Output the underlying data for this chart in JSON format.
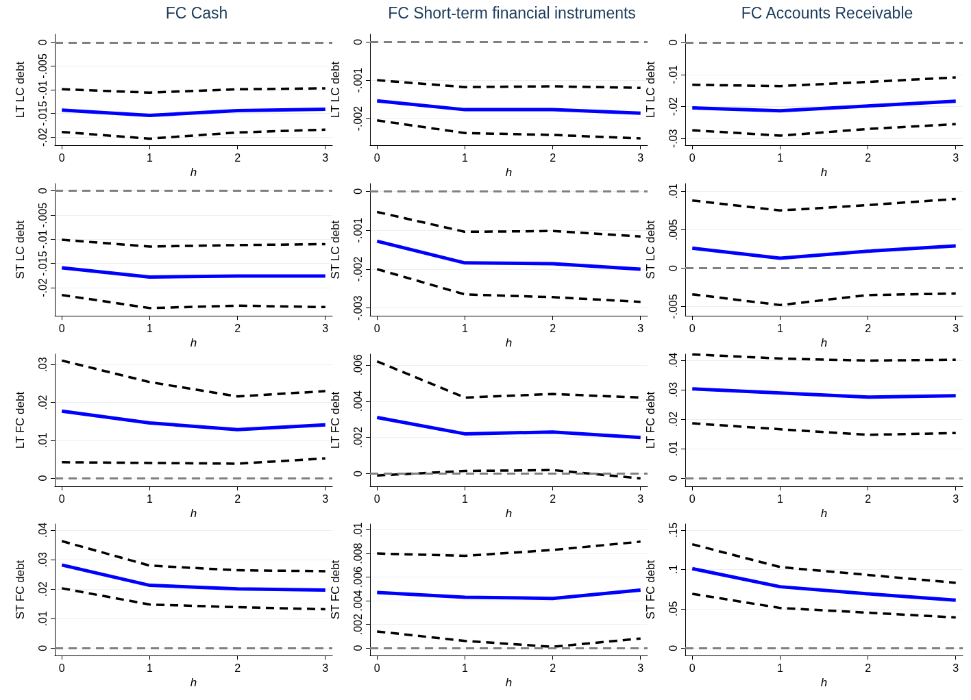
{
  "chart_data": [
    {
      "type": "line",
      "title": "FC Cash",
      "xlabel": "h",
      "ylabel": "LT LC debt",
      "x": [
        0,
        1,
        2,
        3
      ],
      "xlim": [
        -0.08,
        3.08
      ],
      "xticks": [
        0,
        1,
        2,
        3
      ],
      "ylim": [
        -0.0217,
        0.0017
      ],
      "yticks": [
        {
          "value": -0.02,
          "label": "-.02"
        },
        {
          "value": -0.015,
          "label": "-.015"
        },
        {
          "value": -0.01,
          "label": "-.01"
        },
        {
          "value": -0.005,
          "label": "-.005"
        },
        {
          "value": 0,
          "label": "0"
        }
      ],
      "grid": "y",
      "ref_lines": [
        {
          "axis": "y",
          "value": 0,
          "color": "#808080",
          "line_style": "dashed"
        }
      ],
      "series": [
        {
          "color": "#000000",
          "line_style": "dashed",
          "values": [
            -0.0099,
            -0.0106,
            -0.0099,
            -0.0097
          ]
        },
        {
          "color": "#0000ff",
          "line_style": "solid",
          "values": [
            -0.0143,
            -0.0154,
            -0.0144,
            -0.0141
          ]
        },
        {
          "color": "#000000",
          "line_style": "dashed",
          "values": [
            -0.0189,
            -0.0203,
            -0.019,
            -0.0184
          ]
        }
      ]
    },
    {
      "type": "line",
      "title": "FC Short-term financial instruments",
      "xlabel": "h",
      "ylabel": "LT LC debt",
      "x": [
        0,
        1,
        2,
        3
      ],
      "xlim": [
        -0.08,
        3.08
      ],
      "xticks": [
        0,
        1,
        2,
        3
      ],
      "ylim": [
        -0.0027,
        0.0002
      ],
      "yticks": [
        {
          "value": -0.002,
          "label": "-.002"
        },
        {
          "value": -0.001,
          "label": "-.001"
        },
        {
          "value": 0,
          "label": "0"
        }
      ],
      "grid": "y",
      "ref_lines": [
        {
          "axis": "y",
          "value": 0,
          "color": "#808080",
          "line_style": "dashed"
        }
      ],
      "series": [
        {
          "color": "#000000",
          "line_style": "dashed",
          "values": [
            -0.001,
            -0.00118,
            -0.00116,
            -0.0012
          ]
        },
        {
          "color": "#0000ff",
          "line_style": "solid",
          "values": [
            -0.00154,
            -0.00177,
            -0.00177,
            -0.00186
          ]
        },
        {
          "color": "#000000",
          "line_style": "dashed",
          "values": [
            -0.00205,
            -0.00238,
            -0.00243,
            -0.00252
          ]
        }
      ]
    },
    {
      "type": "line",
      "title": "FC Accounts Receivable",
      "xlabel": "h",
      "ylabel": "LT LC debt",
      "x": [
        0,
        1,
        2,
        3
      ],
      "xlim": [
        -0.08,
        3.08
      ],
      "xticks": [
        0,
        1,
        2,
        3
      ],
      "ylim": [
        -0.0321,
        0.0026
      ],
      "yticks": [
        {
          "value": -0.03,
          "label": "-.03"
        },
        {
          "value": -0.02,
          "label": "-.02"
        },
        {
          "value": -0.01,
          "label": "-.01"
        },
        {
          "value": 0,
          "label": "0"
        }
      ],
      "grid": "y",
      "ref_lines": [
        {
          "axis": "y",
          "value": 0,
          "color": "#808080",
          "line_style": "dashed"
        }
      ],
      "series": [
        {
          "color": "#000000",
          "line_style": "dashed",
          "values": [
            -0.0132,
            -0.0136,
            -0.0123,
            -0.0109
          ]
        },
        {
          "color": "#0000ff",
          "line_style": "solid",
          "values": [
            -0.0204,
            -0.0213,
            -0.0198,
            -0.0183
          ]
        },
        {
          "color": "#000000",
          "line_style": "dashed",
          "values": [
            -0.0274,
            -0.0291,
            -0.027,
            -0.0255
          ]
        }
      ]
    },
    {
      "type": "line",
      "xlabel": "h",
      "ylabel": "ST LC debt",
      "x": [
        0,
        1,
        2,
        3
      ],
      "xlim": [
        -0.08,
        3.08
      ],
      "xticks": [
        0,
        1,
        2,
        3
      ],
      "ylim": [
        -0.0258,
        0.0015
      ],
      "yticks": [
        {
          "value": -0.02,
          "label": "-.02"
        },
        {
          "value": -0.015,
          "label": "-.015"
        },
        {
          "value": -0.01,
          "label": "-.01"
        },
        {
          "value": -0.005,
          "label": "-.005"
        },
        {
          "value": 0,
          "label": "0"
        }
      ],
      "grid": "y",
      "ref_lines": [
        {
          "axis": "y",
          "value": 0,
          "color": "#808080",
          "line_style": "dashed"
        }
      ],
      "series": [
        {
          "color": "#000000",
          "line_style": "dashed",
          "values": [
            -0.0101,
            -0.0115,
            -0.0112,
            -0.011
          ]
        },
        {
          "color": "#0000ff",
          "line_style": "solid",
          "values": [
            -0.0159,
            -0.0178,
            -0.0176,
            -0.0176
          ]
        },
        {
          "color": "#000000",
          "line_style": "dashed",
          "values": [
            -0.0215,
            -0.0242,
            -0.0237,
            -0.024
          ]
        }
      ]
    },
    {
      "type": "line",
      "xlabel": "h",
      "ylabel": "ST LC debt",
      "x": [
        0,
        1,
        2,
        3
      ],
      "xlim": [
        -0.08,
        3.08
      ],
      "xticks": [
        0,
        1,
        2,
        3
      ],
      "ylim": [
        -0.0032,
        0.0002
      ],
      "yticks": [
        {
          "value": -0.003,
          "label": "-.003"
        },
        {
          "value": -0.002,
          "label": "-.002"
        },
        {
          "value": -0.001,
          "label": "-.001"
        },
        {
          "value": 0,
          "label": "0"
        }
      ],
      "grid": "y",
      "ref_lines": [
        {
          "axis": "y",
          "value": 0,
          "color": "#808080",
          "line_style": "dashed"
        }
      ],
      "series": [
        {
          "color": "#000000",
          "line_style": "dashed",
          "values": [
            -0.00053,
            -0.00104,
            -0.00102,
            -0.00116
          ]
        },
        {
          "color": "#0000ff",
          "line_style": "solid",
          "values": [
            -0.00128,
            -0.00184,
            -0.00186,
            -0.002
          ]
        },
        {
          "color": "#000000",
          "line_style": "dashed",
          "values": [
            -0.002,
            -0.00265,
            -0.00272,
            -0.00284
          ]
        }
      ]
    },
    {
      "type": "line",
      "xlabel": "h",
      "ylabel": "ST LC debt",
      "x": [
        0,
        1,
        2,
        3
      ],
      "xlim": [
        -0.08,
        3.08
      ],
      "xticks": [
        0,
        1,
        2,
        3
      ],
      "ylim": [
        -0.0062,
        0.011
      ],
      "yticks": [
        {
          "value": -0.005,
          "label": "-.005"
        },
        {
          "value": 0,
          "label": "0"
        },
        {
          "value": 0.005,
          "label": ".005"
        },
        {
          "value": 0.01,
          "label": ".01"
        }
      ],
      "grid": "y",
      "ref_lines": [
        {
          "axis": "y",
          "value": 0,
          "color": "#808080",
          "line_style": "dashed"
        }
      ],
      "series": [
        {
          "color": "#000000",
          "line_style": "dashed",
          "values": [
            0.0088,
            0.0075,
            0.0082,
            0.009
          ]
        },
        {
          "color": "#0000ff",
          "line_style": "solid",
          "values": [
            0.0026,
            0.0013,
            0.0022,
            0.0029
          ]
        },
        {
          "color": "#000000",
          "line_style": "dashed",
          "values": [
            -0.0034,
            -0.0048,
            -0.0035,
            -0.0033
          ]
        }
      ]
    },
    {
      "type": "line",
      "xlabel": "h",
      "ylabel": "LT FC debt",
      "x": [
        0,
        1,
        2,
        3
      ],
      "xlim": [
        -0.08,
        3.08
      ],
      "xticks": [
        0,
        1,
        2,
        3
      ],
      "ylim": [
        -0.0022,
        0.0328
      ],
      "yticks": [
        {
          "value": 0,
          "label": "0"
        },
        {
          "value": 0.01,
          "label": ".01"
        },
        {
          "value": 0.02,
          "label": ".02"
        },
        {
          "value": 0.03,
          "label": ".03"
        }
      ],
      "grid": "y",
      "ref_lines": [
        {
          "axis": "y",
          "value": 0,
          "color": "#808080",
          "line_style": "dashed"
        }
      ],
      "series": [
        {
          "color": "#000000",
          "line_style": "dashed",
          "values": [
            0.0311,
            0.0254,
            0.0216,
            0.023
          ]
        },
        {
          "color": "#0000ff",
          "line_style": "solid",
          "values": [
            0.0177,
            0.0146,
            0.0128,
            0.0141
          ]
        },
        {
          "color": "#000000",
          "line_style": "dashed",
          "values": [
            0.0042,
            0.004,
            0.0038,
            0.0052
          ]
        }
      ]
    },
    {
      "type": "line",
      "xlabel": "h",
      "ylabel": "LT FC debt",
      "x": [
        0,
        1,
        2,
        3
      ],
      "xlim": [
        -0.08,
        3.08
      ],
      "xticks": [
        0,
        1,
        2,
        3
      ],
      "ylim": [
        -0.0007,
        0.0066
      ],
      "yticks": [
        {
          "value": 0,
          "label": "0"
        },
        {
          "value": 0.002,
          "label": ".002"
        },
        {
          "value": 0.004,
          "label": ".004"
        },
        {
          "value": 0.006,
          "label": ".006"
        }
      ],
      "grid": "y",
      "ref_lines": [
        {
          "axis": "y",
          "value": 0,
          "color": "#808080",
          "line_style": "dashed"
        }
      ],
      "series": [
        {
          "color": "#000000",
          "line_style": "dashed",
          "values": [
            0.0062,
            0.0042,
            0.0044,
            0.0042
          ]
        },
        {
          "color": "#0000ff",
          "line_style": "solid",
          "values": [
            0.0031,
            0.0022,
            0.0023,
            0.002
          ]
        },
        {
          "color": "#000000",
          "line_style": "dashed",
          "values": [
            -0.0001,
            0.00015,
            0.0002,
            -0.00026
          ]
        }
      ]
    },
    {
      "type": "line",
      "xlabel": "h",
      "ylabel": "LT FC debt",
      "x": [
        0,
        1,
        2,
        3
      ],
      "xlim": [
        -0.08,
        3.08
      ],
      "xticks": [
        0,
        1,
        2,
        3
      ],
      "ylim": [
        -0.0028,
        0.0421
      ],
      "yticks": [
        {
          "value": 0,
          "label": "0"
        },
        {
          "value": 0.01,
          "label": ".01"
        },
        {
          "value": 0.02,
          "label": ".02"
        },
        {
          "value": 0.03,
          "label": ".03"
        },
        {
          "value": 0.04,
          "label": ".04"
        }
      ],
      "grid": "y",
      "ref_lines": [
        {
          "axis": "y",
          "value": 0,
          "color": "#808080",
          "line_style": "dashed"
        }
      ],
      "series": [
        {
          "color": "#000000",
          "line_style": "dashed",
          "values": [
            0.042,
            0.0406,
            0.0399,
            0.0402
          ]
        },
        {
          "color": "#0000ff",
          "line_style": "solid",
          "values": [
            0.0303,
            0.0289,
            0.0275,
            0.028
          ]
        },
        {
          "color": "#000000",
          "line_style": "dashed",
          "values": [
            0.0186,
            0.0166,
            0.0147,
            0.0153
          ]
        }
      ]
    },
    {
      "type": "line",
      "xlabel": "h",
      "ylabel": "ST FC debt",
      "x": [
        0,
        1,
        2,
        3
      ],
      "xlim": [
        -0.08,
        3.08
      ],
      "xticks": [
        0,
        1,
        2,
        3
      ],
      "ylim": [
        -0.0025,
        0.0421
      ],
      "yticks": [
        {
          "value": 0,
          "label": "0"
        },
        {
          "value": 0.01,
          "label": ".01"
        },
        {
          "value": 0.02,
          "label": ".02"
        },
        {
          "value": 0.03,
          "label": ".03"
        },
        {
          "value": 0.04,
          "label": ".04"
        }
      ],
      "grid": "y",
      "ref_lines": [
        {
          "axis": "y",
          "value": 0,
          "color": "#808080",
          "line_style": "dashed"
        }
      ],
      "series": [
        {
          "color": "#000000",
          "line_style": "dashed",
          "values": [
            0.0363,
            0.028,
            0.0264,
            0.0261
          ]
        },
        {
          "color": "#0000ff",
          "line_style": "solid",
          "values": [
            0.0282,
            0.0213,
            0.0201,
            0.0197
          ]
        },
        {
          "color": "#000000",
          "line_style": "dashed",
          "values": [
            0.0203,
            0.0148,
            0.0139,
            0.0132
          ]
        }
      ]
    },
    {
      "type": "line",
      "xlabel": "h",
      "ylabel": "ST FC debt",
      "x": [
        0,
        1,
        2,
        3
      ],
      "xlim": [
        -0.08,
        3.08
      ],
      "xticks": [
        0,
        1,
        2,
        3
      ],
      "ylim": [
        -0.00064,
        0.0105
      ],
      "yticks": [
        {
          "value": 0,
          "label": "0"
        },
        {
          "value": 0.002,
          "label": ".002"
        },
        {
          "value": 0.004,
          "label": ".004"
        },
        {
          "value": 0.006,
          "label": ".006"
        },
        {
          "value": 0.008,
          "label": ".008"
        },
        {
          "value": 0.01,
          "label": ".01"
        }
      ],
      "grid": "y",
      "ref_lines": [
        {
          "axis": "y",
          "value": 0,
          "color": "#808080",
          "line_style": "dashed"
        }
      ],
      "series": [
        {
          "color": "#000000",
          "line_style": "dashed",
          "values": [
            0.008,
            0.0078,
            0.0083,
            0.009
          ]
        },
        {
          "color": "#0000ff",
          "line_style": "solid",
          "values": [
            0.0047,
            0.0043,
            0.0042,
            0.0049
          ]
        },
        {
          "color": "#000000",
          "line_style": "dashed",
          "values": [
            0.0014,
            0.0006,
            0.0001,
            0.0008
          ]
        }
      ]
    },
    {
      "type": "line",
      "xlabel": "h",
      "ylabel": "ST FC debt",
      "x": [
        0,
        1,
        2,
        3
      ],
      "xlim": [
        -0.08,
        3.08
      ],
      "xticks": [
        0,
        1,
        2,
        3
      ],
      "ylim": [
        -0.0095,
        0.1578
      ],
      "yticks": [
        {
          "value": 0,
          "label": "0"
        },
        {
          "value": 0.05,
          "label": ".05"
        },
        {
          "value": 0.1,
          "label": ".1"
        },
        {
          "value": 0.15,
          "label": ".15"
        }
      ],
      "grid": "y",
      "ref_lines": [
        {
          "axis": "y",
          "value": 0,
          "color": "#808080",
          "line_style": "dashed"
        }
      ],
      "series": [
        {
          "color": "#000000",
          "line_style": "dashed",
          "values": [
            0.132,
            0.103,
            0.093,
            0.083
          ]
        },
        {
          "color": "#0000ff",
          "line_style": "solid",
          "values": [
            0.101,
            0.078,
            0.069,
            0.061
          ]
        },
        {
          "color": "#000000",
          "line_style": "dashed",
          "values": [
            0.069,
            0.051,
            0.045,
            0.039
          ]
        }
      ]
    }
  ]
}
